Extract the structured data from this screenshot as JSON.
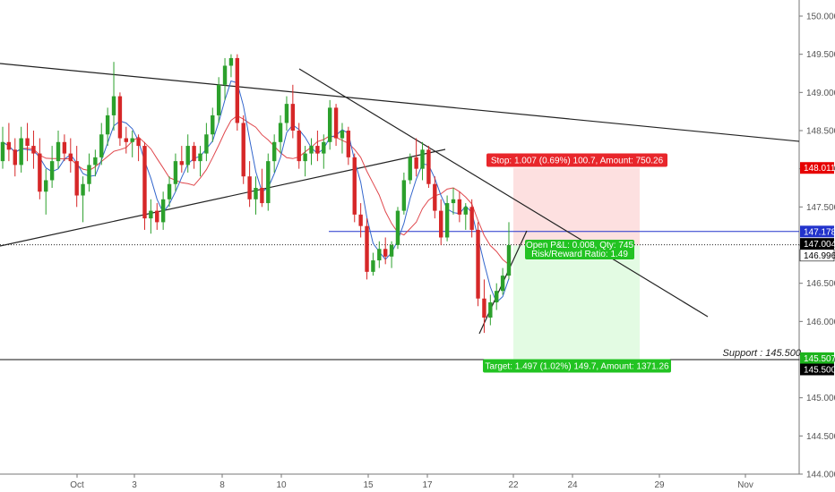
{
  "chart_data": {
    "type": "candlestick",
    "price_axis": {
      "ticks": [
        "150.000",
        "149.500",
        "149.000",
        "148.500",
        "148.000",
        "147.500",
        "147.000",
        "146.500",
        "146.000",
        "145.500",
        "145.000",
        "144.500",
        "144.000"
      ],
      "ylim": [
        144.0,
        150.2
      ]
    },
    "time_axis": {
      "ticks": [
        "Oct",
        "3",
        "8",
        "10",
        "15",
        "17",
        "22",
        "24",
        "29",
        "Nov"
      ]
    },
    "price_labels": [
      {
        "value": 148.011,
        "text": "148.011",
        "color": "#e60000"
      },
      {
        "value": 147.178,
        "text": "147.178",
        "color": "#2233cc"
      },
      {
        "value": 147.004,
        "text": "147.004",
        "color": "#000000"
      },
      {
        "value": 146.996,
        "text": "146.996",
        "color": "#ffffff"
      },
      {
        "value": 145.507,
        "text": "145.507",
        "color": "#1db41d"
      },
      {
        "value": 145.5,
        "text": "145.500",
        "color": "#000000"
      }
    ],
    "support": {
      "value": 145.5,
      "label": "Support : 145.500"
    },
    "resistance_line": {
      "value": 147.178
    },
    "current_price": 147.004,
    "position": {
      "entry": 146.996,
      "stop": 148.011,
      "target": 145.507,
      "stop_label": "Stop: 1.007 (0.69%) 100.7, Amount: 750.26",
      "target_label": "Target: 1.497 (1.02%) 149.7, Amount: 1371.26",
      "pnl_label": "Open P&L: 0.008, Qty: 745",
      "rr_label": "Risk/Reward Ratio: 1.49"
    },
    "colors": {
      "up": "#2ca02c",
      "down": "#d62728",
      "ma_fast": "#3366cc",
      "ma_slow": "#e0484d",
      "trendline": "#222222",
      "stop_zone": "#fde0e0",
      "target_zone": "#e3fbe3"
    },
    "candles": [
      [
        148.1,
        148.55,
        148.0,
        148.35
      ],
      [
        148.35,
        148.6,
        148.1,
        148.25
      ],
      [
        148.25,
        148.4,
        147.9,
        148.05
      ],
      [
        148.05,
        148.55,
        147.95,
        148.4
      ],
      [
        148.4,
        148.6,
        148.1,
        148.3
      ],
      [
        148.3,
        148.5,
        148.0,
        148.2
      ],
      [
        148.2,
        148.4,
        147.6,
        147.7
      ],
      [
        147.7,
        148.0,
        147.4,
        147.85
      ],
      [
        147.85,
        148.3,
        147.75,
        148.1
      ],
      [
        148.1,
        148.5,
        148.0,
        148.35
      ],
      [
        148.35,
        148.45,
        148.1,
        148.2
      ],
      [
        148.2,
        148.4,
        147.95,
        148.1
      ],
      [
        148.1,
        148.3,
        147.5,
        147.65
      ],
      [
        147.65,
        147.9,
        147.3,
        147.8
      ],
      [
        147.8,
        148.2,
        147.7,
        148.05
      ],
      [
        148.05,
        148.25,
        147.9,
        148.15
      ],
      [
        148.15,
        148.6,
        148.05,
        148.45
      ],
      [
        148.45,
        148.8,
        148.3,
        148.7
      ],
      [
        148.7,
        149.4,
        148.5,
        148.95
      ],
      [
        148.95,
        149.0,
        148.3,
        148.4
      ],
      [
        148.4,
        148.55,
        148.2,
        148.35
      ],
      [
        148.35,
        148.5,
        148.15,
        148.4
      ],
      [
        148.4,
        148.45,
        148.1,
        148.3
      ],
      [
        148.3,
        148.35,
        147.2,
        147.35
      ],
      [
        147.35,
        147.6,
        147.15,
        147.45
      ],
      [
        147.45,
        147.55,
        147.2,
        147.3
      ],
      [
        147.3,
        147.7,
        147.2,
        147.6
      ],
      [
        147.6,
        147.9,
        147.5,
        147.8
      ],
      [
        147.8,
        148.2,
        147.7,
        148.1
      ],
      [
        148.1,
        148.3,
        147.95,
        148.05
      ],
      [
        148.05,
        148.45,
        147.95,
        148.3
      ],
      [
        148.3,
        148.35,
        148.0,
        148.1
      ],
      [
        148.1,
        148.3,
        147.9,
        148.2
      ],
      [
        148.2,
        148.6,
        148.1,
        148.45
      ],
      [
        148.45,
        148.8,
        148.35,
        148.7
      ],
      [
        148.7,
        149.2,
        148.6,
        149.1
      ],
      [
        149.1,
        149.45,
        148.9,
        149.35
      ],
      [
        149.35,
        149.5,
        149.2,
        149.45
      ],
      [
        149.45,
        149.5,
        148.5,
        148.6
      ],
      [
        148.6,
        148.7,
        147.8,
        147.9
      ],
      [
        147.9,
        148.1,
        147.5,
        147.6
      ],
      [
        147.6,
        147.9,
        147.4,
        147.75
      ],
      [
        147.75,
        148.0,
        147.5,
        147.55
      ],
      [
        147.55,
        148.2,
        147.45,
        148.1
      ],
      [
        148.1,
        148.45,
        147.95,
        148.35
      ],
      [
        148.35,
        148.7,
        148.2,
        148.6
      ],
      [
        148.6,
        148.95,
        148.5,
        148.85
      ],
      [
        148.85,
        149.1,
        148.4,
        148.5
      ],
      [
        148.5,
        148.6,
        148.0,
        148.1
      ],
      [
        148.1,
        148.3,
        147.9,
        148.2
      ],
      [
        148.2,
        148.4,
        148.05,
        148.3
      ],
      [
        148.3,
        148.5,
        148.1,
        148.2
      ],
      [
        148.2,
        148.45,
        148.0,
        148.35
      ],
      [
        148.35,
        148.9,
        148.25,
        148.8
      ],
      [
        148.8,
        148.85,
        148.3,
        148.4
      ],
      [
        148.4,
        148.6,
        148.2,
        148.5
      ],
      [
        148.5,
        148.55,
        148.05,
        148.15
      ],
      [
        148.15,
        148.2,
        147.3,
        147.4
      ],
      [
        147.4,
        147.55,
        147.1,
        147.25
      ],
      [
        147.25,
        147.35,
        146.55,
        146.65
      ],
      [
        146.65,
        146.9,
        146.6,
        146.8
      ],
      [
        146.8,
        147.05,
        146.7,
        146.95
      ],
      [
        146.95,
        147.1,
        146.75,
        146.85
      ],
      [
        146.85,
        147.05,
        146.7,
        147.0
      ],
      [
        147.0,
        147.5,
        146.95,
        147.45
      ],
      [
        147.45,
        147.95,
        147.4,
        147.85
      ],
      [
        147.85,
        148.2,
        147.8,
        148.15
      ],
      [
        148.15,
        148.4,
        147.9,
        148.0
      ],
      [
        148.0,
        148.35,
        147.85,
        148.25
      ],
      [
        148.25,
        148.3,
        147.75,
        147.8
      ],
      [
        147.8,
        147.9,
        147.35,
        147.45
      ],
      [
        147.45,
        147.6,
        147.0,
        147.1
      ],
      [
        147.1,
        147.65,
        147.05,
        147.55
      ],
      [
        147.55,
        147.75,
        147.4,
        147.6
      ],
      [
        147.6,
        147.7,
        147.3,
        147.4
      ],
      [
        147.4,
        147.55,
        147.2,
        147.5
      ],
      [
        147.5,
        147.6,
        147.1,
        147.2
      ],
      [
        147.2,
        147.3,
        146.2,
        146.3
      ],
      [
        146.3,
        146.55,
        145.85,
        146.05
      ],
      [
        146.05,
        146.35,
        145.95,
        146.25
      ],
      [
        146.25,
        146.5,
        146.15,
        146.4
      ],
      [
        146.4,
        146.7,
        146.35,
        146.6
      ],
      [
        146.6,
        147.3,
        146.55,
        147.0
      ]
    ]
  }
}
